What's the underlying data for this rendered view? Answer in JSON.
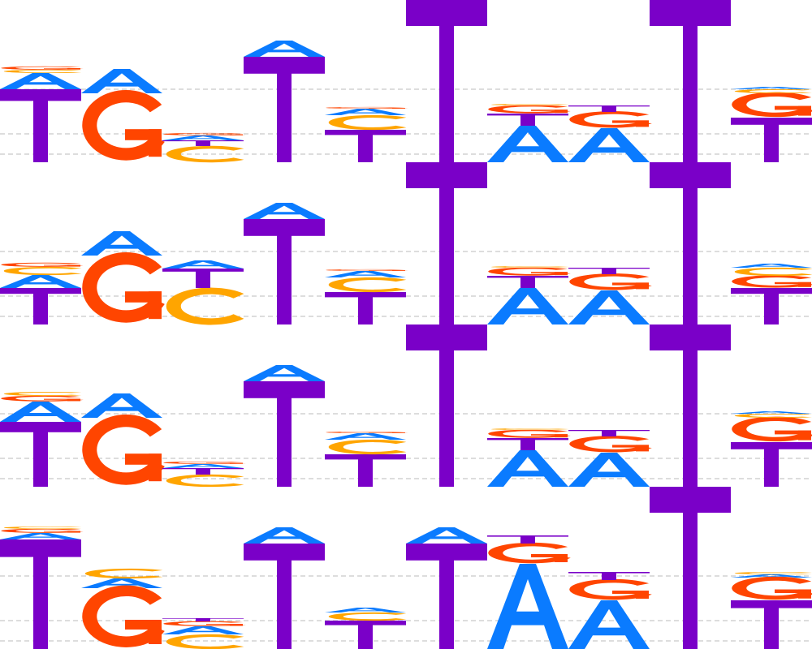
{
  "colors": {
    "A": "#0a7bff",
    "C": "#ffa500",
    "G": "#ff4500",
    "T": "#7a00c8",
    "gridline": "#bbbbbb"
  },
  "logos": [
    {
      "positions": [
        {
          "T": 0.9,
          "A": 0.2,
          "C": 0.04,
          "G": 0.04
        },
        {
          "G": 0.85,
          "A": 0.3,
          "C": 0.0,
          "T": 0.0
        },
        {
          "C": 0.2,
          "T": 0.07,
          "A": 0.06,
          "G": 0.03
        },
        {
          "T": 1.3,
          "A": 0.2,
          "C": 0.0,
          "G": 0.0
        },
        {
          "C": 0.18,
          "T": 0.4,
          "A": 0.08,
          "G": 0.02
        },
        {
          "T": 2.0,
          "A": 0.0,
          "C": 0.0,
          "G": 0.0
        },
        {
          "A": 0.45,
          "T": 0.15,
          "G": 0.1,
          "C": 0.02
        },
        {
          "A": 0.42,
          "G": 0.2,
          "T": 0.08,
          "C": 0.0
        },
        {
          "T": 2.0,
          "A": 0.0,
          "C": 0.0,
          "G": 0.0
        },
        {
          "T": 0.55,
          "G": 0.3,
          "C": 0.05,
          "A": 0.03
        }
      ]
    },
    {
      "positions": [
        {
          "T": 0.45,
          "C": 0.1,
          "A": 0.16,
          "G": 0.05
        },
        {
          "G": 0.85,
          "A": 0.3,
          "C": 0.0,
          "T": 0.0
        },
        {
          "C": 0.45,
          "T": 0.24,
          "A": 0.1,
          "G": 0.0
        },
        {
          "T": 1.3,
          "A": 0.2,
          "C": 0.0,
          "G": 0.0
        },
        {
          "C": 0.18,
          "T": 0.4,
          "A": 0.08,
          "G": 0.02
        },
        {
          "T": 2.0,
          "A": 0.0,
          "C": 0.0,
          "G": 0.0
        },
        {
          "A": 0.45,
          "T": 0.15,
          "G": 0.1,
          "C": 0.02
        },
        {
          "A": 0.42,
          "G": 0.2,
          "T": 0.08,
          "C": 0.0
        },
        {
          "T": 2.0,
          "A": 0.0,
          "C": 0.0,
          "G": 0.0
        },
        {
          "T": 0.45,
          "G": 0.15,
          "C": 0.1,
          "A": 0.05
        }
      ]
    },
    {
      "positions": [
        {
          "T": 0.8,
          "A": 0.25,
          "G": 0.07,
          "C": 0.05
        },
        {
          "G": 0.85,
          "A": 0.3,
          "C": 0.0,
          "T": 0.0
        },
        {
          "C": 0.15,
          "T": 0.08,
          "A": 0.05,
          "G": 0.03
        },
        {
          "T": 1.3,
          "A": 0.2,
          "C": 0.0,
          "G": 0.0
        },
        {
          "C": 0.18,
          "T": 0.4,
          "A": 0.08,
          "G": 0.02
        },
        {
          "T": 2.0,
          "A": 0.0,
          "C": 0.0,
          "G": 0.0
        },
        {
          "A": 0.45,
          "T": 0.15,
          "G": 0.1,
          "C": 0.02
        },
        {
          "A": 0.42,
          "G": 0.2,
          "T": 0.08,
          "C": 0.0
        },
        {
          "T": 2.0,
          "A": 0.0,
          "C": 0.0,
          "G": 0.0
        },
        {
          "T": 0.55,
          "G": 0.3,
          "C": 0.05,
          "A": 0.03
        }
      ]
    },
    {
      "positions": [
        {
          "T": 1.35,
          "G": 0.05,
          "C": 0.03,
          "A": 0.08
        },
        {
          "G": 0.75,
          "A": 0.12,
          "C": 0.12,
          "T": 0.0
        },
        {
          "C": 0.18,
          "A": 0.1,
          "G": 0.06,
          "T": 0.04
        },
        {
          "T": 1.3,
          "A": 0.2,
          "C": 0.0,
          "G": 0.0
        },
        {
          "T": 0.35,
          "C": 0.1,
          "A": 0.06,
          "G": 0.0
        },
        {
          "T": 1.3,
          "A": 0.2,
          "C": 0.0,
          "G": 0.0
        },
        {
          "A": 1.05,
          "G": 0.25,
          "T": 0.1,
          "C": 0.0
        },
        {
          "A": 0.6,
          "G": 0.25,
          "T": 0.1,
          "C": 0.0
        },
        {
          "T": 2.0,
          "A": 0.0,
          "C": 0.0,
          "G": 0.0
        },
        {
          "T": 0.6,
          "G": 0.28,
          "C": 0.03,
          "A": 0.04
        }
      ]
    }
  ]
}
